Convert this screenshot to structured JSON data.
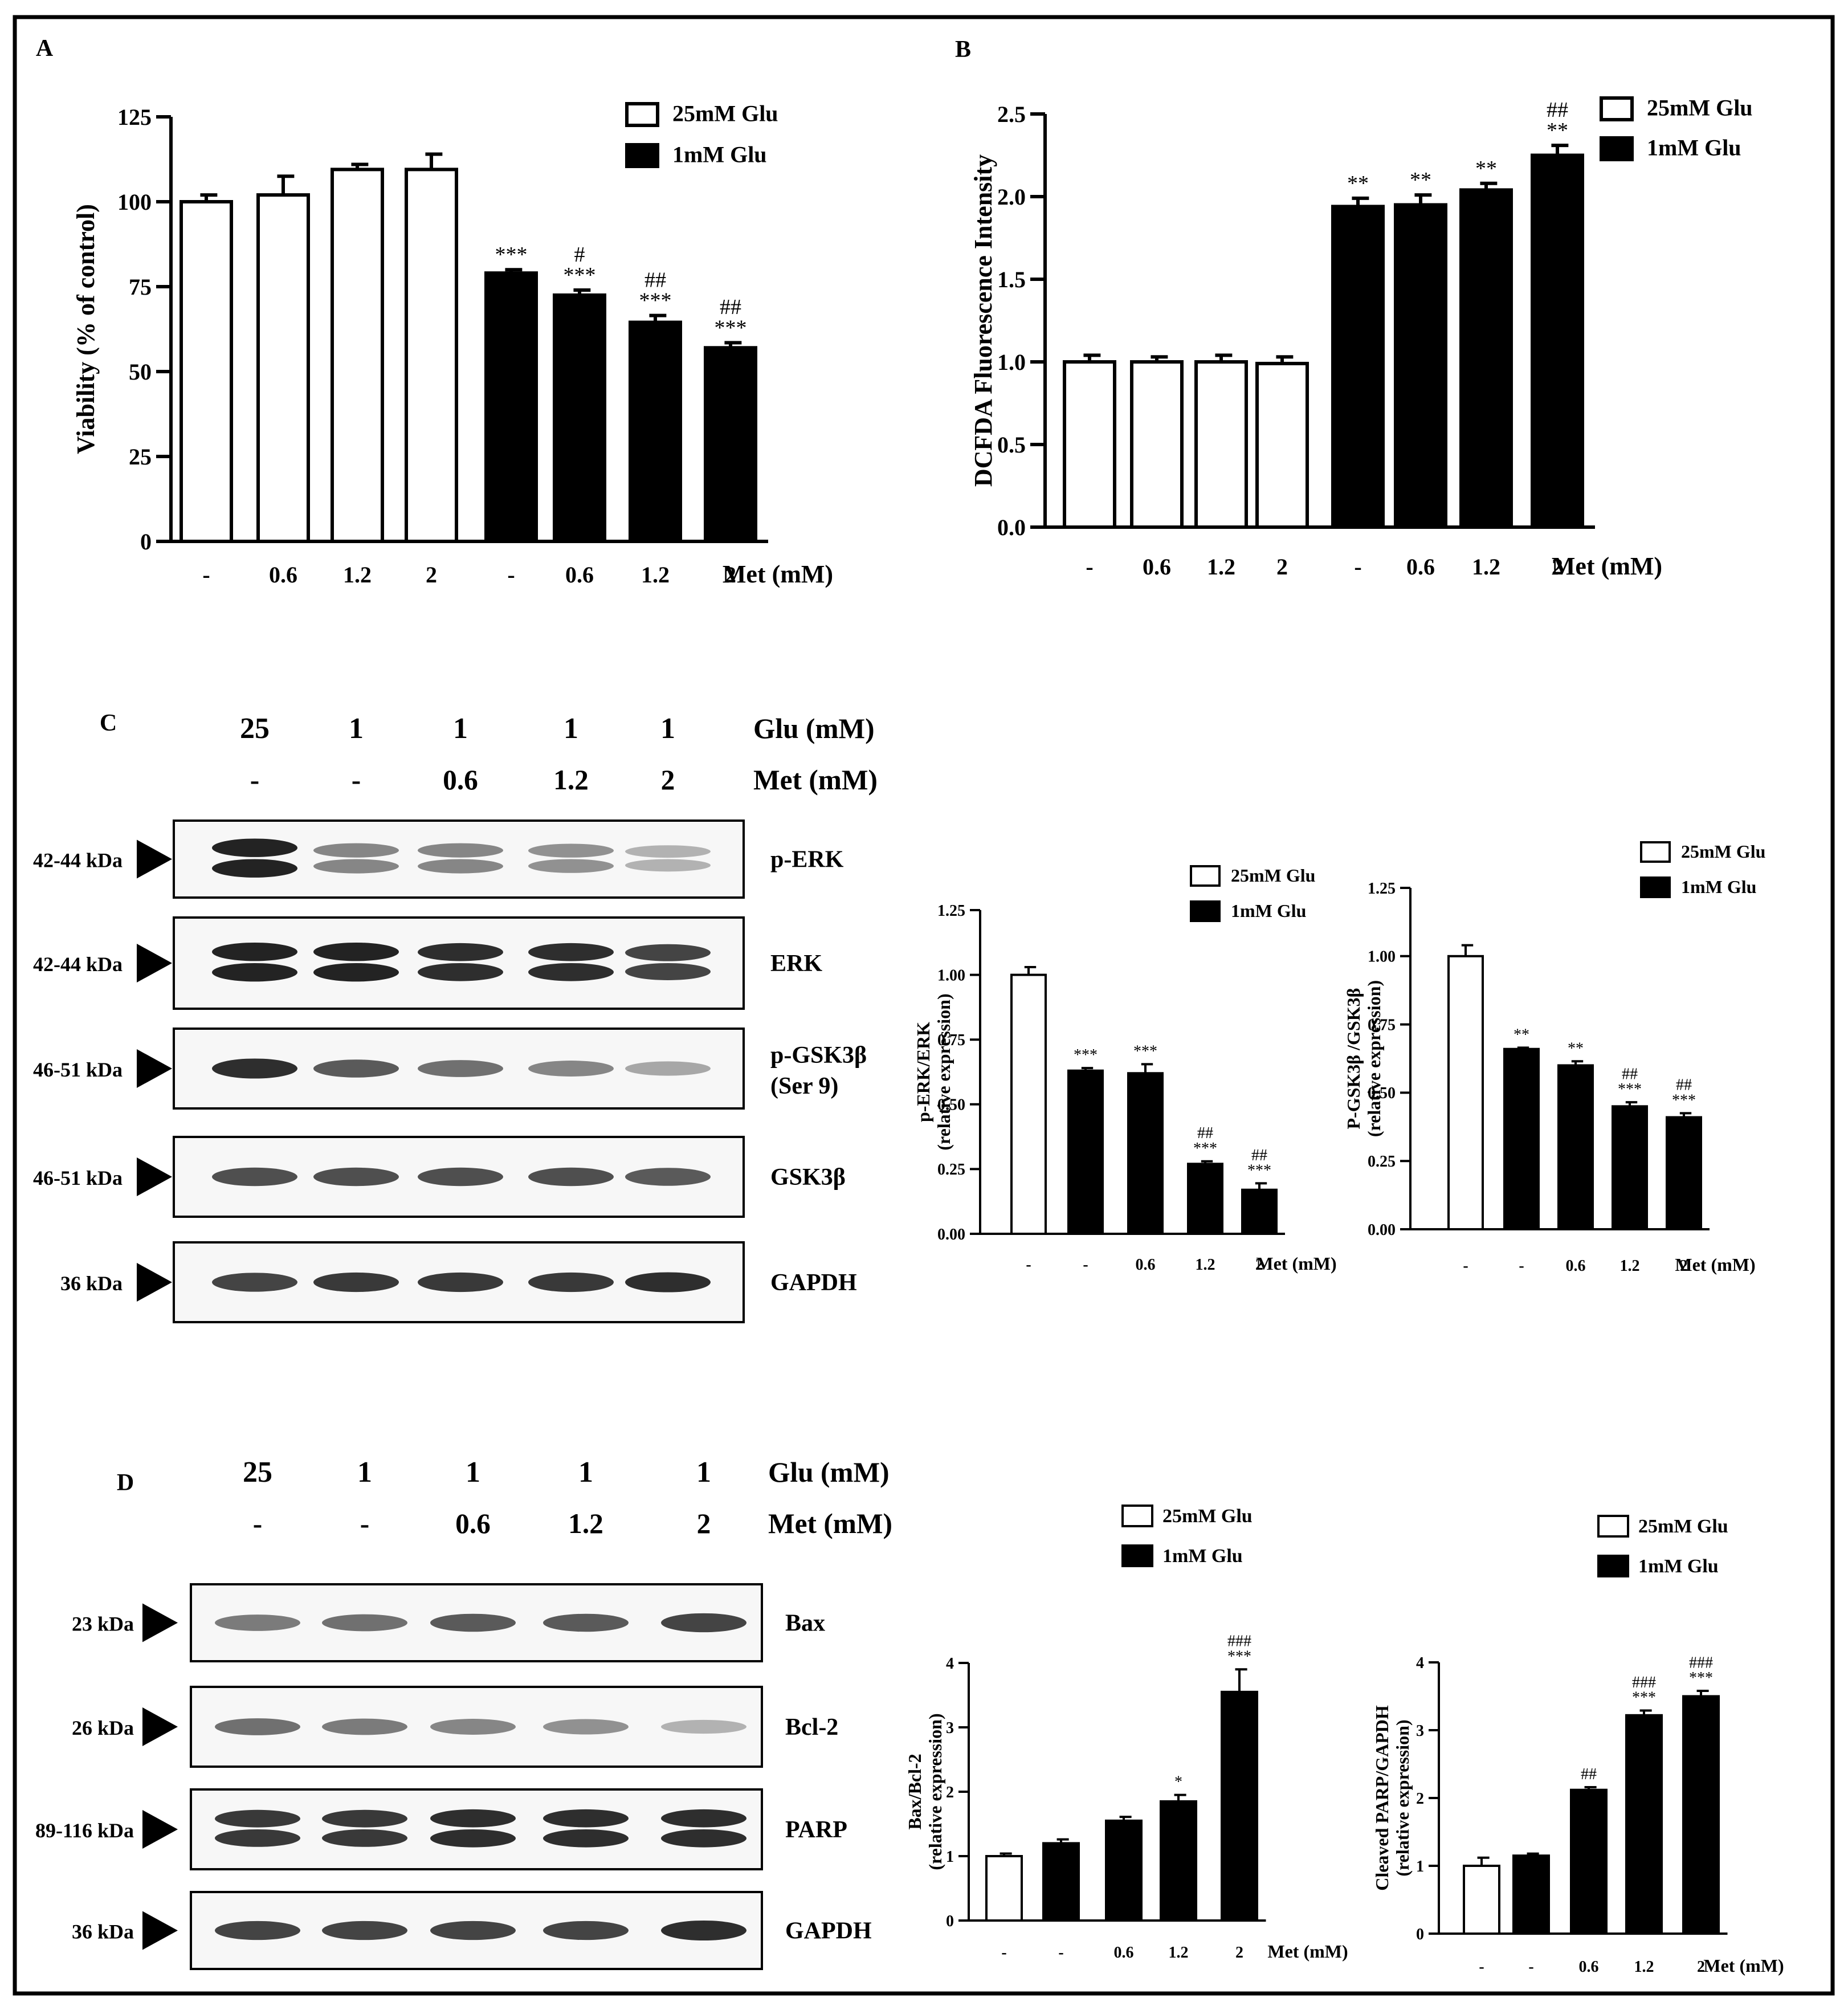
{
  "legend": {
    "white": "25mM Glu",
    "black": "1mM Glu"
  },
  "chart_data": [
    {
      "id": "A",
      "panel_label": "A",
      "type": "bar",
      "ylabel": "Viability (% of control)",
      "xlabel": "Met (mM)",
      "ylim": [
        0,
        125
      ],
      "yticks": [
        "0",
        "25",
        "50",
        "75",
        "100",
        "125"
      ],
      "categories": [
        "-",
        "0.6",
        "1.2",
        "2",
        "-",
        "0.6",
        "1.2",
        "2"
      ],
      "values": [
        100,
        102,
        109.5,
        109.5,
        79,
        72.5,
        64.5,
        57
      ],
      "errors": [
        2,
        5.5,
        1.5,
        4.5,
        1,
        1.5,
        2,
        1.5
      ],
      "fills": [
        "white",
        "white",
        "white",
        "white",
        "black",
        "black",
        "black",
        "black"
      ],
      "annotations": [
        "",
        "",
        "",
        "",
        "***",
        "#\n***",
        "##\n***",
        "##\n***"
      ],
      "legend_position": "top-right"
    },
    {
      "id": "B",
      "panel_label": "B",
      "type": "bar",
      "ylabel": "DCFDA Fluorescence Intensity",
      "xlabel": "Met (mM)",
      "ylim": [
        0,
        2.5
      ],
      "yticks": [
        "0.0",
        "0.5",
        "1.0",
        "1.5",
        "2.0",
        "2.5"
      ],
      "categories": [
        "-",
        "0.6",
        "1.2",
        "2",
        "-",
        "0.6",
        "1.2",
        "2"
      ],
      "values": [
        1.0,
        1.0,
        1.0,
        0.99,
        1.94,
        1.95,
        2.04,
        2.25
      ],
      "errors": [
        0.04,
        0.03,
        0.04,
        0.04,
        0.05,
        0.06,
        0.04,
        0.06
      ],
      "fills": [
        "white",
        "white",
        "white",
        "white",
        "black",
        "black",
        "black",
        "black"
      ],
      "annotations": [
        "",
        "",
        "",
        "",
        "**",
        "**",
        "**",
        "##\n**"
      ],
      "legend_position": "top-right"
    },
    {
      "id": "C1",
      "type": "bar",
      "ylabel": "p-ERK/ERK\n(relative expression)",
      "xlabel": "Met (mM)",
      "ylim": [
        0,
        1.25
      ],
      "yticks": [
        "0.00",
        "0.25",
        "0.50",
        "0.75",
        "1.00",
        "1.25"
      ],
      "categories": [
        "-",
        "-",
        "0.6",
        "1.2",
        "2"
      ],
      "values": [
        1.0,
        0.63,
        0.62,
        0.27,
        0.17
      ],
      "errors": [
        0.03,
        0.01,
        0.035,
        0.01,
        0.025
      ],
      "fills": [
        "white",
        "black",
        "black",
        "black",
        "black"
      ],
      "annotations": [
        "",
        "***",
        "***",
        "##\n***",
        "##\n***"
      ],
      "legend_position": "top-right"
    },
    {
      "id": "C2",
      "type": "bar",
      "ylabel": "P-GSK3β /GSK3β\n(relative expression)",
      "xlabel": "Met (mM)",
      "ylim": [
        0,
        1.25
      ],
      "yticks": [
        "0.00",
        "0.25",
        "0.50",
        "0.75",
        "1.00",
        "1.25"
      ],
      "categories": [
        "-",
        "-",
        "0.6",
        "1.2",
        "2"
      ],
      "values": [
        1.0,
        0.66,
        0.6,
        0.45,
        0.41
      ],
      "errors": [
        0.04,
        0.005,
        0.015,
        0.015,
        0.015
      ],
      "fills": [
        "white",
        "black",
        "black",
        "black",
        "black"
      ],
      "annotations": [
        "",
        "**",
        "**",
        "##\n***",
        "##\n***"
      ],
      "legend_position": "top-right"
    },
    {
      "id": "D1",
      "type": "bar",
      "ylabel": "Bax/Bcl-2\n(relative expression)",
      "xlabel": "Met (mM)",
      "ylim": [
        0,
        4
      ],
      "yticks": [
        "0",
        "1",
        "2",
        "3",
        "4"
      ],
      "categories": [
        "-",
        "-",
        "0.6",
        "1.2",
        "2"
      ],
      "values": [
        1.0,
        1.2,
        1.55,
        1.85,
        3.55
      ],
      "errors": [
        0.04,
        0.06,
        0.06,
        0.1,
        0.35
      ],
      "fills": [
        "white",
        "black",
        "black",
        "black",
        "black"
      ],
      "annotations": [
        "",
        "",
        "",
        "*",
        "###\n***"
      ],
      "legend_position": "top-right"
    },
    {
      "id": "D2",
      "type": "bar",
      "ylabel": "Cleaved PARP/GAPDH\n(relative expression)",
      "xlabel": "Met (mM)",
      "ylim": [
        0,
        4
      ],
      "yticks": [
        "0",
        "1",
        "2",
        "3",
        "4"
      ],
      "categories": [
        "-",
        "-",
        "0.6",
        "1.2",
        "2"
      ],
      "values": [
        1.0,
        1.15,
        2.12,
        3.22,
        3.5
      ],
      "errors": [
        0.12,
        0.03,
        0.04,
        0.07,
        0.08
      ],
      "fills": [
        "white",
        "black",
        "black",
        "black",
        "black"
      ],
      "annotations": [
        "",
        "",
        "##",
        "###\n***",
        "###\n***"
      ],
      "legend_position": "top-right"
    }
  ],
  "blots": [
    {
      "id": "C",
      "panel_label": "C",
      "glu_label": "Glu (mM)",
      "met_label": "Met (mM)",
      "glu": [
        "25",
        "1",
        "1",
        "1",
        "1"
      ],
      "met": [
        "-",
        "-",
        "0.6",
        "1.2",
        "2"
      ],
      "rows": [
        {
          "kda": "42-44 kDa",
          "name": "p-ERK",
          "intensity": [
            1.0,
            0.55,
            0.55,
            0.5,
            0.35
          ],
          "double": true
        },
        {
          "kda": "42-44 kDa",
          "name": "ERK",
          "intensity": [
            1.0,
            1.0,
            0.95,
            0.95,
            0.85
          ],
          "double": true
        },
        {
          "kda": "46-51 kDa",
          "name": "p-GSK3β",
          "name2": "(Ser 9)",
          "intensity": [
            0.95,
            0.75,
            0.65,
            0.55,
            0.4
          ],
          "double": false
        },
        {
          "kda": "46-51 kDa",
          "name": "GSK3β",
          "intensity": [
            0.8,
            0.8,
            0.8,
            0.8,
            0.75
          ],
          "double": false
        },
        {
          "kda": "36 kDa",
          "name": "GAPDH",
          "intensity": [
            0.85,
            0.9,
            0.9,
            0.9,
            0.95
          ],
          "double": false
        }
      ]
    },
    {
      "id": "D",
      "panel_label": "D",
      "glu_label": "Glu (mM)",
      "met_label": "Met (mM)",
      "glu": [
        "25",
        "1",
        "1",
        "1",
        "1"
      ],
      "met": [
        "-",
        "-",
        "0.6",
        "1.2",
        "2"
      ],
      "rows": [
        {
          "kda": "23 kDa",
          "name": "Bax",
          "intensity": [
            0.6,
            0.65,
            0.75,
            0.75,
            0.85
          ],
          "double": false
        },
        {
          "kda": "26 kDa",
          "name": "Bcl-2",
          "intensity": [
            0.65,
            0.6,
            0.55,
            0.5,
            0.35
          ],
          "double": false
        },
        {
          "kda": "89-116 kDa",
          "name": "PARP",
          "intensity": [
            0.9,
            0.9,
            0.95,
            0.95,
            0.95
          ],
          "double": true
        },
        {
          "kda": "36 kDa",
          "name": "GAPDH",
          "intensity": [
            0.85,
            0.85,
            0.85,
            0.85,
            0.95
          ],
          "double": false
        }
      ]
    }
  ]
}
